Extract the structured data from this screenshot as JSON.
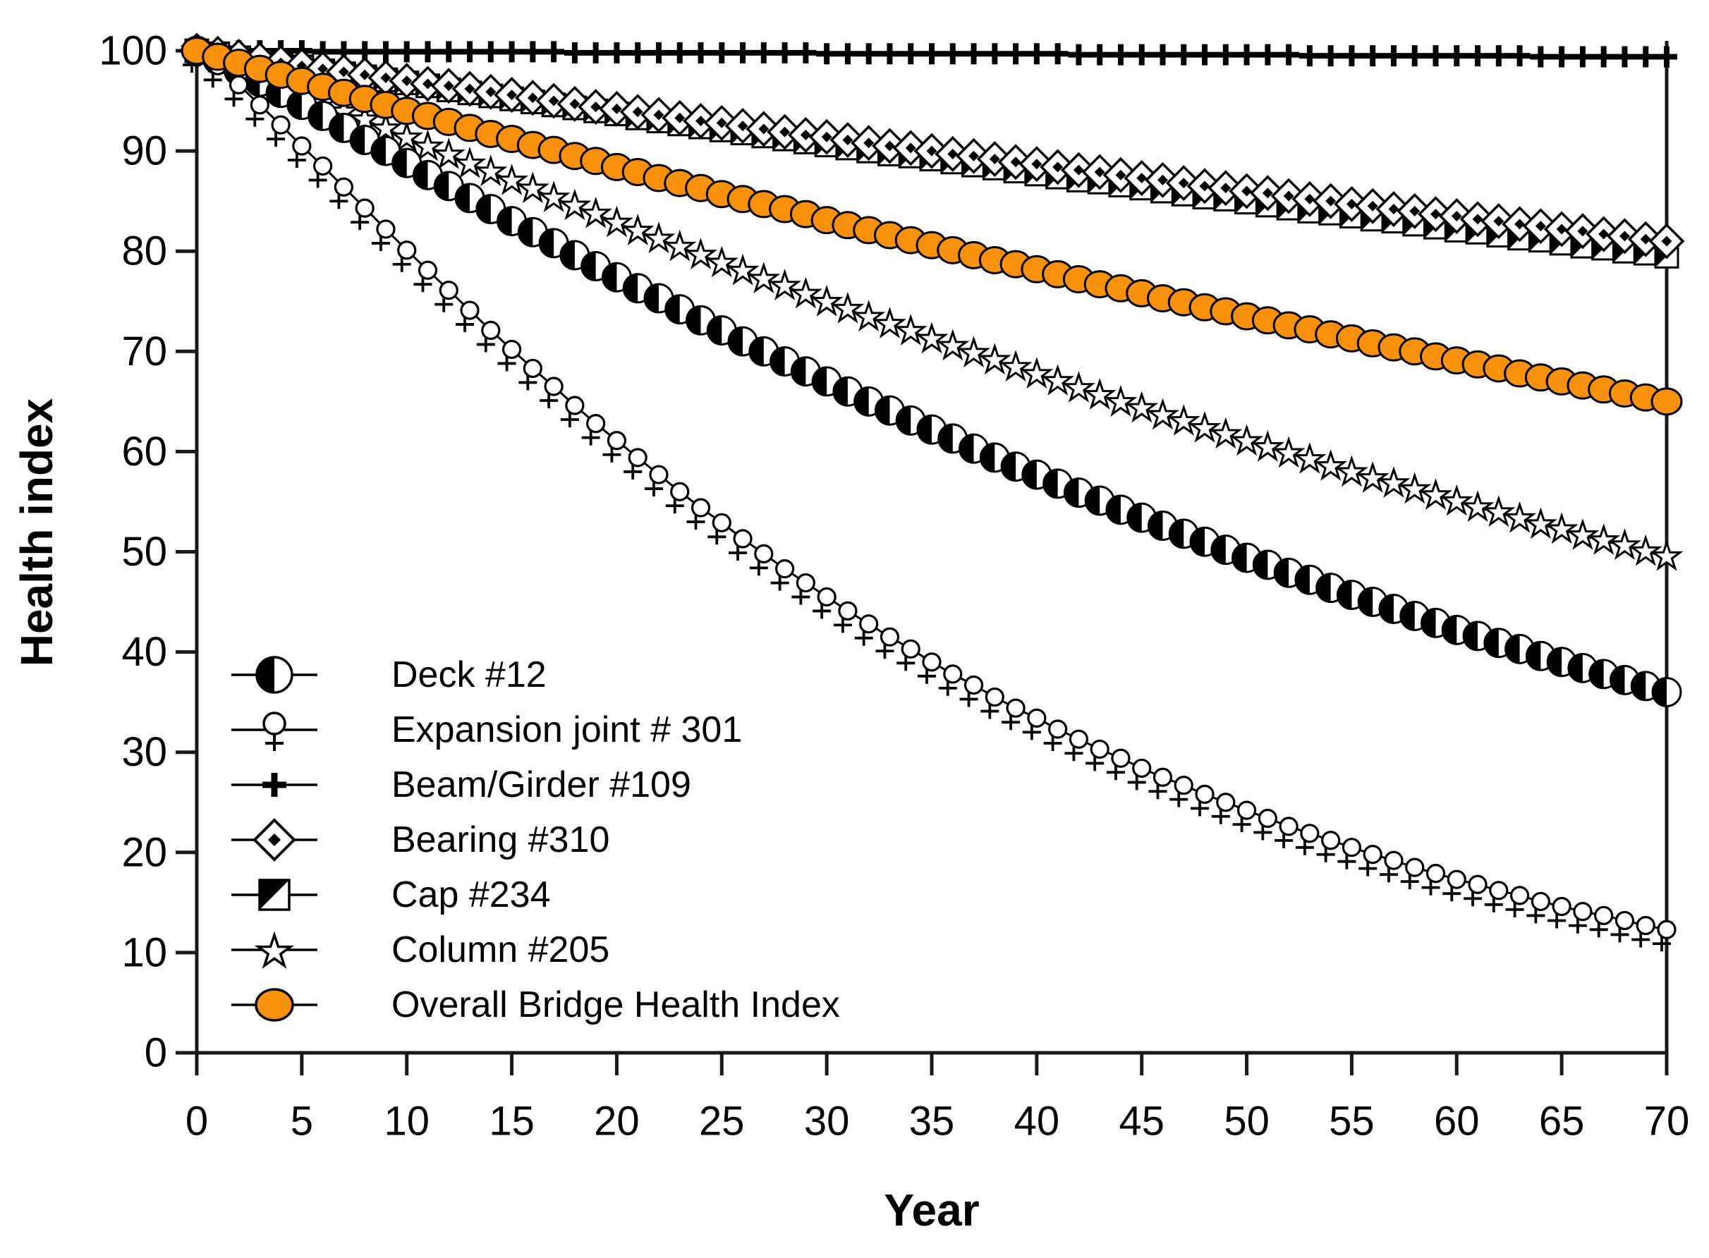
{
  "chart_data": {
    "type": "line",
    "title": "",
    "xlabel": "Year",
    "ylabel": "Health index",
    "xlim": [
      0,
      70
    ],
    "ylim": [
      0,
      100
    ],
    "x_ticks": [
      0,
      5,
      10,
      15,
      20,
      25,
      30,
      35,
      40,
      45,
      50,
      55,
      60,
      65,
      70
    ],
    "y_ticks": [
      0,
      10,
      20,
      30,
      40,
      50,
      60,
      70,
      80,
      90,
      100
    ],
    "x_step_years": 1,
    "grid": false,
    "legend_position": "lower-left",
    "colors": {
      "orange": "#F9920A",
      "line": "#000000",
      "axis": "#1A1A1A"
    },
    "series": [
      {
        "name": "Deck #12",
        "marker": "half-circle",
        "color": "#000000",
        "values": [
          100,
          99.1,
          98,
          96.9,
          95.8,
          94.6,
          93.5,
          92.3,
          91.1,
          90,
          88.8,
          87.6,
          86.5,
          85.3,
          84.2,
          83,
          81.9,
          80.8,
          79.6,
          78.5,
          77.4,
          76.3,
          75.3,
          74.2,
          73.1,
          72.1,
          71,
          70,
          69,
          68,
          67,
          66,
          65,
          64.1,
          63.1,
          62.2,
          61.3,
          60.3,
          59.4,
          58.5,
          57.7,
          56.8,
          55.9,
          55.1,
          54.2,
          53.4,
          52.6,
          51.8,
          51,
          50.2,
          49.4,
          48.7,
          47.9,
          47.2,
          46.4,
          45.7,
          45,
          44.3,
          43.6,
          42.9,
          42.2,
          41.6,
          40.9,
          40.3,
          39.6,
          39,
          38.4,
          37.8,
          37.2,
          36.6,
          36
        ]
      },
      {
        "name": "Expansion joint # 301",
        "marker": "circle-plus",
        "color": "#000000",
        "values": [
          100,
          98.5,
          96.6,
          94.6,
          92.6,
          90.5,
          88.5,
          86.4,
          84.3,
          82.2,
          80.1,
          78.1,
          76.1,
          74.1,
          72.1,
          70.2,
          68.3,
          66.5,
          64.6,
          62.8,
          61.1,
          59.4,
          57.7,
          56,
          54.4,
          52.9,
          51.3,
          49.8,
          48.3,
          46.9,
          45.5,
          44.1,
          42.8,
          41.5,
          40.3,
          39,
          37.8,
          36.7,
          35.5,
          34.4,
          33.4,
          32.3,
          31.3,
          30.3,
          29.4,
          28.4,
          27.5,
          26.7,
          25.8,
          25,
          24.2,
          23.4,
          22.6,
          21.9,
          21.2,
          20.5,
          19.8,
          19.2,
          18.5,
          17.9,
          17.3,
          16.8,
          16.2,
          15.7,
          15.1,
          14.6,
          14.1,
          13.7,
          13.2,
          12.7,
          12.3
        ]
      },
      {
        "name": "Beam/Girder #109",
        "marker": "plus",
        "color": "#000000",
        "values": [
          100,
          100,
          100,
          100,
          100,
          100,
          99.9,
          99.9,
          99.9,
          99.9,
          99.9,
          99.9,
          99.9,
          99.9,
          99.9,
          99.9,
          99.9,
          99.9,
          99.8,
          99.8,
          99.8,
          99.8,
          99.8,
          99.8,
          99.8,
          99.8,
          99.8,
          99.8,
          99.8,
          99.8,
          99.7,
          99.7,
          99.7,
          99.7,
          99.7,
          99.7,
          99.7,
          99.7,
          99.7,
          99.7,
          99.7,
          99.7,
          99.6,
          99.6,
          99.6,
          99.6,
          99.6,
          99.6,
          99.6,
          99.6,
          99.6,
          99.6,
          99.6,
          99.5,
          99.5,
          99.5,
          99.5,
          99.5,
          99.5,
          99.5,
          99.5,
          99.5,
          99.5,
          99.5,
          99.4,
          99.4,
          99.4,
          99.4,
          99.4,
          99.4,
          99.4
        ]
      },
      {
        "name": "Bearing #310",
        "marker": "diamond-dot",
        "color": "#000000",
        "values": [
          100,
          99.7,
          99.4,
          99.1,
          98.8,
          98.5,
          98.2,
          97.9,
          97.6,
          97.3,
          97,
          96.7,
          96.5,
          96.2,
          95.9,
          95.6,
          95.3,
          95,
          94.7,
          94.4,
          94.2,
          93.9,
          93.6,
          93.3,
          93,
          92.8,
          92.5,
          92.2,
          91.9,
          91.6,
          91.4,
          91.1,
          90.8,
          90.5,
          90.3,
          90,
          89.7,
          89.5,
          89.2,
          88.9,
          88.7,
          88.4,
          88.1,
          87.9,
          87.6,
          87.3,
          87.1,
          86.8,
          86.5,
          86.3,
          86,
          85.8,
          85.5,
          85.2,
          85,
          84.7,
          84.5,
          84.2,
          84,
          83.7,
          83.5,
          83.2,
          83,
          82.7,
          82.5,
          82.2,
          82,
          81.7,
          81.5,
          81.2,
          81
        ]
      },
      {
        "name": "Cap #234",
        "marker": "half-square",
        "color": "#000000",
        "values": [
          100,
          99.7,
          99.3,
          99,
          98.7,
          98.4,
          98,
          97.7,
          97.4,
          97.1,
          96.8,
          96.5,
          96.1,
          95.8,
          95.5,
          95.2,
          94.9,
          94.6,
          94.3,
          94,
          93.7,
          93.3,
          93,
          92.7,
          92.4,
          92.1,
          91.8,
          91.5,
          91.2,
          90.9,
          90.6,
          90.3,
          90,
          89.7,
          89.5,
          89.2,
          88.9,
          88.6,
          88.3,
          88,
          87.7,
          87.4,
          87.1,
          86.9,
          86.6,
          86.3,
          86,
          85.7,
          85.4,
          85.2,
          84.9,
          84.6,
          84.3,
          84,
          83.8,
          83.5,
          83.2,
          83,
          82.7,
          82.4,
          82.1,
          81.9,
          81.6,
          81.3,
          81.1,
          80.8,
          80.5,
          80.3,
          80,
          79.8,
          79.5
        ]
      },
      {
        "name": "Column #205",
        "marker": "star",
        "color": "#000000",
        "values": [
          100,
          99.2,
          98.3,
          97.5,
          96.6,
          95.7,
          94.8,
          93.9,
          93.1,
          92.2,
          91.3,
          90.4,
          89.6,
          88.7,
          87.9,
          87,
          86.2,
          85.3,
          84.5,
          83.7,
          82.8,
          82,
          81.2,
          80.4,
          79.6,
          78.8,
          78,
          77.2,
          76.5,
          75.7,
          74.9,
          74.2,
          73.4,
          72.7,
          72,
          71.2,
          70.5,
          69.8,
          69.1,
          68.4,
          67.7,
          67,
          66.3,
          65.6,
          64.9,
          64.3,
          63.6,
          63,
          62.3,
          61.7,
          61,
          60.4,
          59.8,
          59.2,
          58.5,
          57.9,
          57.3,
          56.8,
          56.2,
          55.6,
          55,
          54.4,
          53.9,
          53.3,
          52.7,
          52.2,
          51.6,
          51.1,
          50.6,
          50,
          49.5
        ]
      },
      {
        "name": "Overall Bridge Health Index",
        "marker": "filled-circle",
        "color": "#F9920A",
        "values": [
          100,
          99.4,
          98.8,
          98.2,
          97.6,
          97,
          96.4,
          95.8,
          95.2,
          94.6,
          94,
          93.5,
          92.9,
          92.3,
          91.7,
          91.2,
          90.6,
          90.1,
          89.5,
          89,
          88.4,
          87.9,
          87.3,
          86.8,
          86.3,
          85.7,
          85.2,
          84.7,
          84.2,
          83.7,
          83.1,
          82.6,
          82.1,
          81.6,
          81.1,
          80.6,
          80.1,
          79.6,
          79.1,
          78.7,
          78.2,
          77.7,
          77.2,
          76.7,
          76.3,
          75.8,
          75.3,
          74.9,
          74.4,
          74,
          73.5,
          73.1,
          72.6,
          72.2,
          71.7,
          71.3,
          70.8,
          70.4,
          70,
          69.5,
          69.1,
          68.7,
          68.3,
          67.8,
          67.4,
          67,
          66.6,
          66.2,
          65.8,
          65.4,
          65
        ]
      }
    ]
  }
}
